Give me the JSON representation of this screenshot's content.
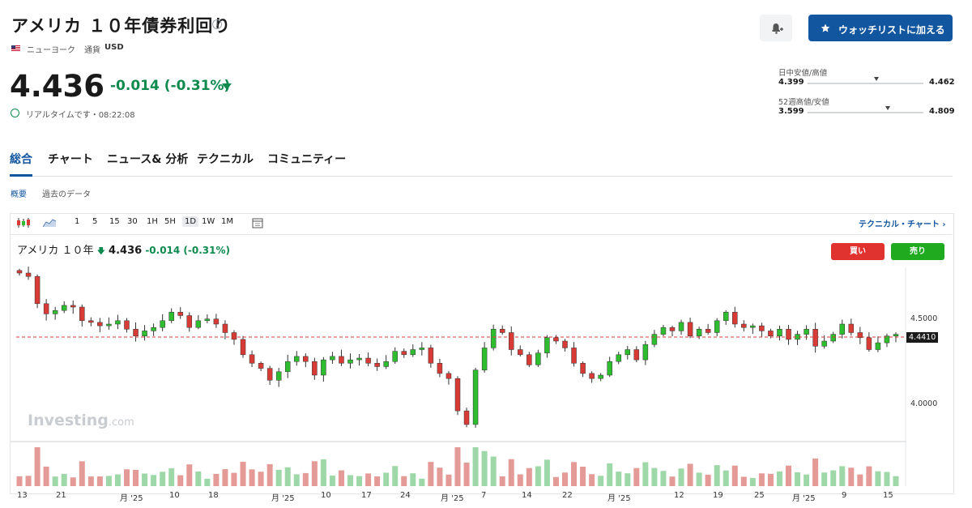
{
  "header": {
    "title": "アメリカ １０年債券利回り",
    "market": "ニューヨーク",
    "currency_label": "通貨",
    "currency": "USD",
    "price": "4.436",
    "change": "-0.014",
    "change_pct": "(-0.31%)",
    "realtime": "リアルタイムです・08:22:08",
    "watchlist_label": "ウォッチリストに加える"
  },
  "ranges": {
    "day_label": "日中安値/高値",
    "day_low": "4.399",
    "day_high": "4.462",
    "week52_label": "52週高値/安値",
    "week52_low": "3.599",
    "week52_high": "4.809"
  },
  "tabs": [
    "総合",
    "チャート",
    "ニュース& 分析",
    "テクニカル",
    "コミュニティー"
  ],
  "subtabs": [
    "概要",
    "過去のデータ"
  ],
  "toolbar": {
    "intervals": [
      "1",
      "5",
      "15",
      "30",
      "1H",
      "5H",
      "1D",
      "1W",
      "1M"
    ],
    "selected_interval": "1D",
    "tech_chart_link": "テクニカル・チャート ›"
  },
  "chart_header": {
    "symbol": "アメリカ １０年",
    "price": "4.436",
    "change": "-0.014",
    "change_pct": "(-0.31%)",
    "buy": "買い",
    "sell": "売り"
  },
  "watermark": {
    "brand": "Investing",
    "suffix": ".com"
  },
  "colors": {
    "up": "#2ebd2e",
    "down": "#d83a35",
    "accent": "#1256a0",
    "positive_text": "#0e8a4f"
  },
  "chart_data": {
    "type": "candlestick",
    "y_ticks": [
      "4.5000",
      "4.0000"
    ],
    "last_value_tag": "4.4410",
    "x_ticks": [
      "13",
      "21",
      "月 '25",
      "10",
      "18",
      "月 '25",
      "10",
      "17",
      "24",
      "月 '25",
      "7",
      "14",
      "22",
      "月 '25",
      "12",
      "19",
      "25",
      "月 '25",
      "9",
      "15"
    ],
    "closes": [
      4.8,
      4.78,
      4.62,
      4.56,
      4.58,
      4.61,
      4.6,
      4.52,
      4.51,
      4.49,
      4.5,
      4.52,
      4.47,
      4.43,
      4.46,
      4.48,
      4.52,
      4.57,
      4.55,
      4.48,
      4.52,
      4.53,
      4.5,
      4.45,
      4.41,
      4.32,
      4.27,
      4.24,
      4.17,
      4.22,
      4.28,
      4.31,
      4.28,
      4.2,
      4.29,
      4.31,
      4.27,
      4.29,
      4.3,
      4.27,
      4.25,
      4.28,
      4.34,
      4.32,
      4.35,
      4.36,
      4.27,
      4.21,
      4.18,
      3.99,
      3.91,
      4.23,
      4.36,
      4.47,
      4.45,
      4.35,
      4.32,
      4.26,
      4.33,
      4.42,
      4.4,
      4.36,
      4.27,
      4.21,
      4.18,
      4.2,
      4.28,
      4.32,
      4.35,
      4.29,
      4.38,
      4.44,
      4.48,
      4.46,
      4.51,
      4.43,
      4.47,
      4.45,
      4.52,
      4.57,
      4.5,
      4.48,
      4.49,
      4.46,
      4.43,
      4.47,
      4.41,
      4.44,
      4.47,
      4.37,
      4.4,
      4.44,
      4.5,
      4.45,
      4.42,
      4.35,
      4.39,
      4.43,
      4.44
    ]
  }
}
